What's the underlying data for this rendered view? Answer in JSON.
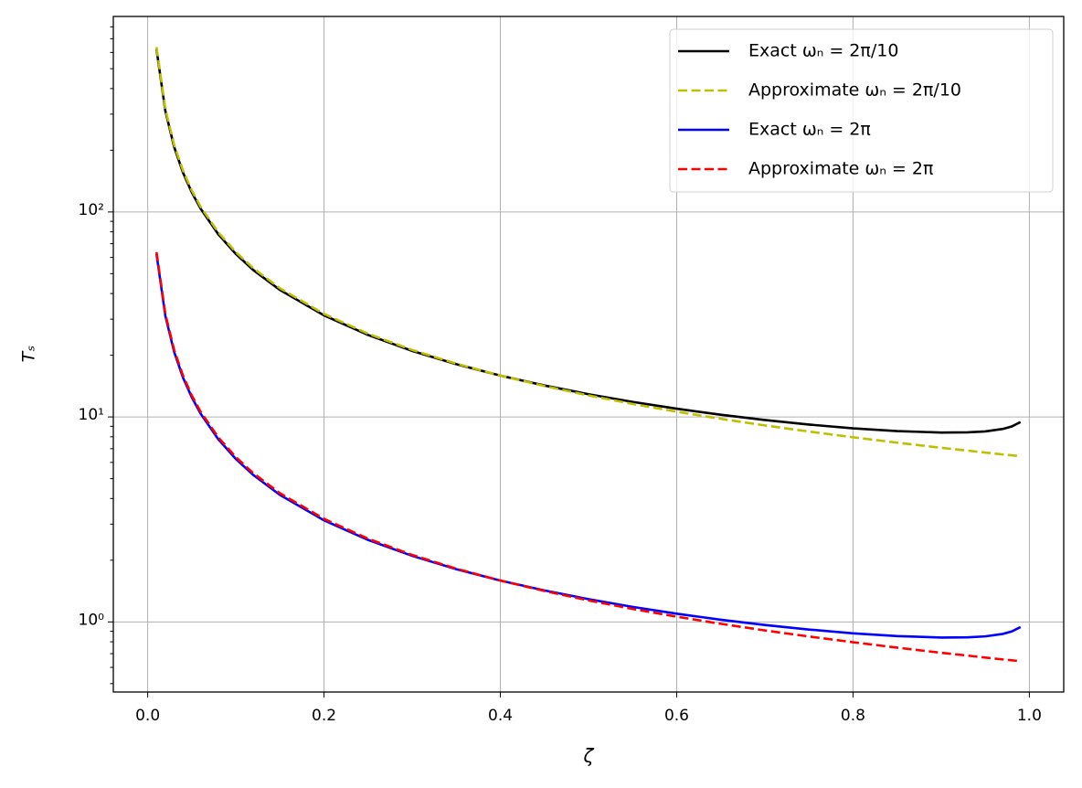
{
  "chart_data": {
    "type": "line",
    "xlabel": "ζ",
    "ylabel": "Tₛ",
    "x": [
      0.01,
      0.02,
      0.03,
      0.04,
      0.05,
      0.06,
      0.08,
      0.1,
      0.12,
      0.15,
      0.2,
      0.25,
      0.3,
      0.35,
      0.4,
      0.45,
      0.5,
      0.55,
      0.6,
      0.65,
      0.7,
      0.75,
      0.8,
      0.85,
      0.9,
      0.93,
      0.95,
      0.97,
      0.98,
      0.99
    ],
    "series": [
      {
        "name": "Exact ωₙ = 2π/10",
        "color": "#000000",
        "linestyle": "solid",
        "values": [
          622.6,
          311.3,
          207.6,
          155.7,
          124.6,
          103.8,
          77.89,
          62.34,
          51.98,
          41.63,
          31.29,
          25.11,
          21.0,
          18.09,
          15.91,
          14.24,
          12.91,
          11.84,
          10.97,
          10.25,
          9.66,
          9.18,
          8.8,
          8.53,
          8.39,
          8.41,
          8.5,
          8.74,
          8.98,
          9.44
        ]
      },
      {
        "name": "Approximate ωₙ = 2π/10",
        "color": "#bfbf00",
        "linestyle": "dashed",
        "values": [
          636.6,
          318.3,
          212.2,
          159.2,
          127.3,
          106.1,
          79.58,
          63.66,
          53.05,
          42.44,
          31.83,
          25.46,
          21.22,
          18.19,
          15.92,
          14.15,
          12.73,
          11.57,
          10.61,
          9.79,
          9.09,
          8.49,
          7.96,
          7.49,
          7.07,
          6.85,
          6.7,
          6.56,
          6.5,
          6.43
        ]
      },
      {
        "name": "Exact ωₙ = 2π",
        "color": "#0000ff",
        "linestyle": "solid",
        "values": [
          62.26,
          31.13,
          20.76,
          15.57,
          12.46,
          10.38,
          7.789,
          6.234,
          5.198,
          4.163,
          3.129,
          2.511,
          2.1,
          1.809,
          1.591,
          1.424,
          1.291,
          1.184,
          1.097,
          1.025,
          0.966,
          0.918,
          0.88,
          0.853,
          0.839,
          0.841,
          0.85,
          0.874,
          0.898,
          0.944
        ]
      },
      {
        "name": "Approximate ωₙ = 2π",
        "color": "#ff0000",
        "linestyle": "dashed",
        "values": [
          63.66,
          31.83,
          21.22,
          15.92,
          12.73,
          10.61,
          7.958,
          6.366,
          5.305,
          4.244,
          3.183,
          2.546,
          2.122,
          1.819,
          1.592,
          1.415,
          1.273,
          1.157,
          1.061,
          0.979,
          0.909,
          0.849,
          0.796,
          0.749,
          0.707,
          0.685,
          0.67,
          0.656,
          0.65,
          0.643
        ]
      }
    ],
    "xlim": [
      -0.039,
      1.039
    ],
    "ylim": [
      0.455,
      899
    ],
    "yscale": "log",
    "xticks": [
      {
        "value": 0,
        "label": "0.0"
      },
      0.2,
      0.4,
      0.6,
      0.8,
      {
        "value": 1,
        "label": "1.0"
      }
    ],
    "yticks": [
      {
        "value": 1,
        "label": "10⁰"
      },
      {
        "value": 10,
        "label": "10¹"
      },
      {
        "value": 100,
        "label": "10²"
      }
    ],
    "grid": true,
    "legend": "upper right"
  }
}
